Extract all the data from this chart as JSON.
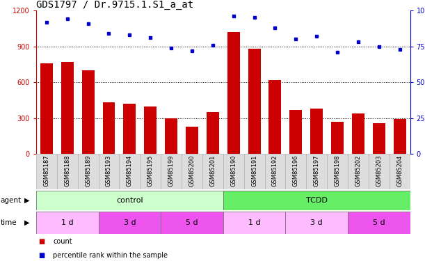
{
  "title": "GDS1797 / Dr.9715.1.S1_a_at",
  "samples": [
    "GSM85187",
    "GSM85188",
    "GSM85189",
    "GSM85193",
    "GSM85194",
    "GSM85195",
    "GSM85199",
    "GSM85200",
    "GSM85201",
    "GSM85190",
    "GSM85191",
    "GSM85192",
    "GSM85196",
    "GSM85197",
    "GSM85198",
    "GSM85202",
    "GSM85203",
    "GSM85204"
  ],
  "counts": [
    760,
    770,
    700,
    430,
    420,
    400,
    300,
    230,
    350,
    1020,
    880,
    620,
    370,
    380,
    270,
    340,
    260,
    290
  ],
  "percentiles": [
    92,
    94,
    91,
    84,
    83,
    81,
    74,
    72,
    76,
    96,
    95,
    88,
    80,
    82,
    71,
    78,
    75,
    73
  ],
  "ylim_left": [
    0,
    1200
  ],
  "ylim_right": [
    0,
    100
  ],
  "yticks_left": [
    0,
    300,
    600,
    900,
    1200
  ],
  "yticks_right": [
    0,
    25,
    50,
    75,
    100
  ],
  "bar_color": "#cc0000",
  "dot_color": "#0000cc",
  "agent_groups": [
    {
      "label": "control",
      "start": 0,
      "end": 9,
      "color": "#ccffcc"
    },
    {
      "label": "TCDD",
      "start": 9,
      "end": 18,
      "color": "#66ee66"
    }
  ],
  "time_groups": [
    {
      "label": "1 d",
      "start": 0,
      "end": 3,
      "color": "#ffbbff"
    },
    {
      "label": "3 d",
      "start": 3,
      "end": 6,
      "color": "#ee55ee"
    },
    {
      "label": "5 d",
      "start": 6,
      "end": 9,
      "color": "#ee55ee"
    },
    {
      "label": "1 d",
      "start": 9,
      "end": 12,
      "color": "#ffbbff"
    },
    {
      "label": "3 d",
      "start": 12,
      "end": 15,
      "color": "#ffbbff"
    },
    {
      "label": "5 d",
      "start": 15,
      "end": 18,
      "color": "#ee55ee"
    }
  ],
  "legend_count_color": "#cc0000",
  "legend_dot_color": "#0000cc",
  "left_axis_color": "#cc0000",
  "right_axis_color": "#0000cc",
  "title_fontsize": 10,
  "tick_fontsize": 7,
  "label_fontsize": 8,
  "sample_bg": "#dddddd"
}
